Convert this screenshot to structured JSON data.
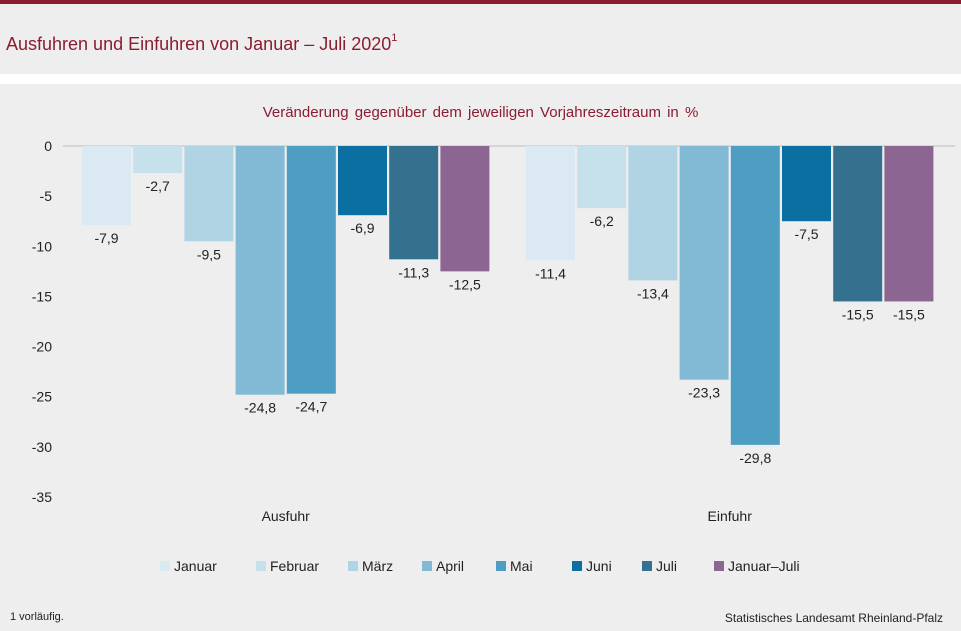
{
  "header": {
    "title": "Ausfuhren und Einfuhren von Januar – Juli 2020",
    "title_sup": "1"
  },
  "chart_data": {
    "type": "bar",
    "title": "Veränderung gegenüber dem jeweiligen Vorjahreszeitraum in %",
    "categories": [
      "Ausfuhr",
      "Einfuhr"
    ],
    "series": [
      {
        "name": "Januar",
        "values": [
          -7.9,
          -11.4
        ],
        "labels": [
          "-7,9",
          "-11,4"
        ],
        "color": "#dbeaf2"
      },
      {
        "name": "Februar",
        "values": [
          -2.7,
          -6.2
        ],
        "labels": [
          "-2,7",
          "-6,2"
        ],
        "color": "#c6e0ec"
      },
      {
        "name": "März",
        "values": [
          -9.5,
          -13.4
        ],
        "labels": [
          "-9,5",
          "-13,4"
        ],
        "color": "#b1d4e4"
      },
      {
        "name": "April",
        "values": [
          -24.8,
          -23.3
        ],
        "labels": [
          "-24,8",
          "-23,3"
        ],
        "color": "#82b9d5"
      },
      {
        "name": "Mai",
        "values": [
          -24.7,
          -29.8
        ],
        "labels": [
          "-24,7",
          "-29,8"
        ],
        "color": "#4d9ec2"
      },
      {
        "name": "Juni",
        "values": [
          -6.9,
          -7.5
        ],
        "labels": [
          "-6,9",
          "-7,5"
        ],
        "color": "#0b6fa2"
      },
      {
        "name": "Juli",
        "values": [
          -11.3,
          -15.5
        ],
        "labels": [
          "-11,3",
          "-15,5"
        ],
        "color": "#33718e"
      },
      {
        "name": "Januar–Juli",
        "values": [
          -12.5,
          -15.5
        ],
        "labels": [
          "-12,5",
          "-15,5"
        ],
        "color": "#8c6592"
      }
    ],
    "ylim": [
      -35,
      0
    ],
    "yticks": [
      0,
      -5,
      -10,
      -15,
      -20,
      -25,
      -30,
      -35
    ],
    "ytick_labels": [
      "0",
      "-5",
      "-10",
      "-15",
      "-20",
      "-25",
      "-30",
      "-35"
    ],
    "grid": false,
    "legend_position": "bottom"
  },
  "footer": {
    "footnote": "1 vorläufig.",
    "source": "Statistisches Landesamt Rheinland-Pfalz"
  }
}
